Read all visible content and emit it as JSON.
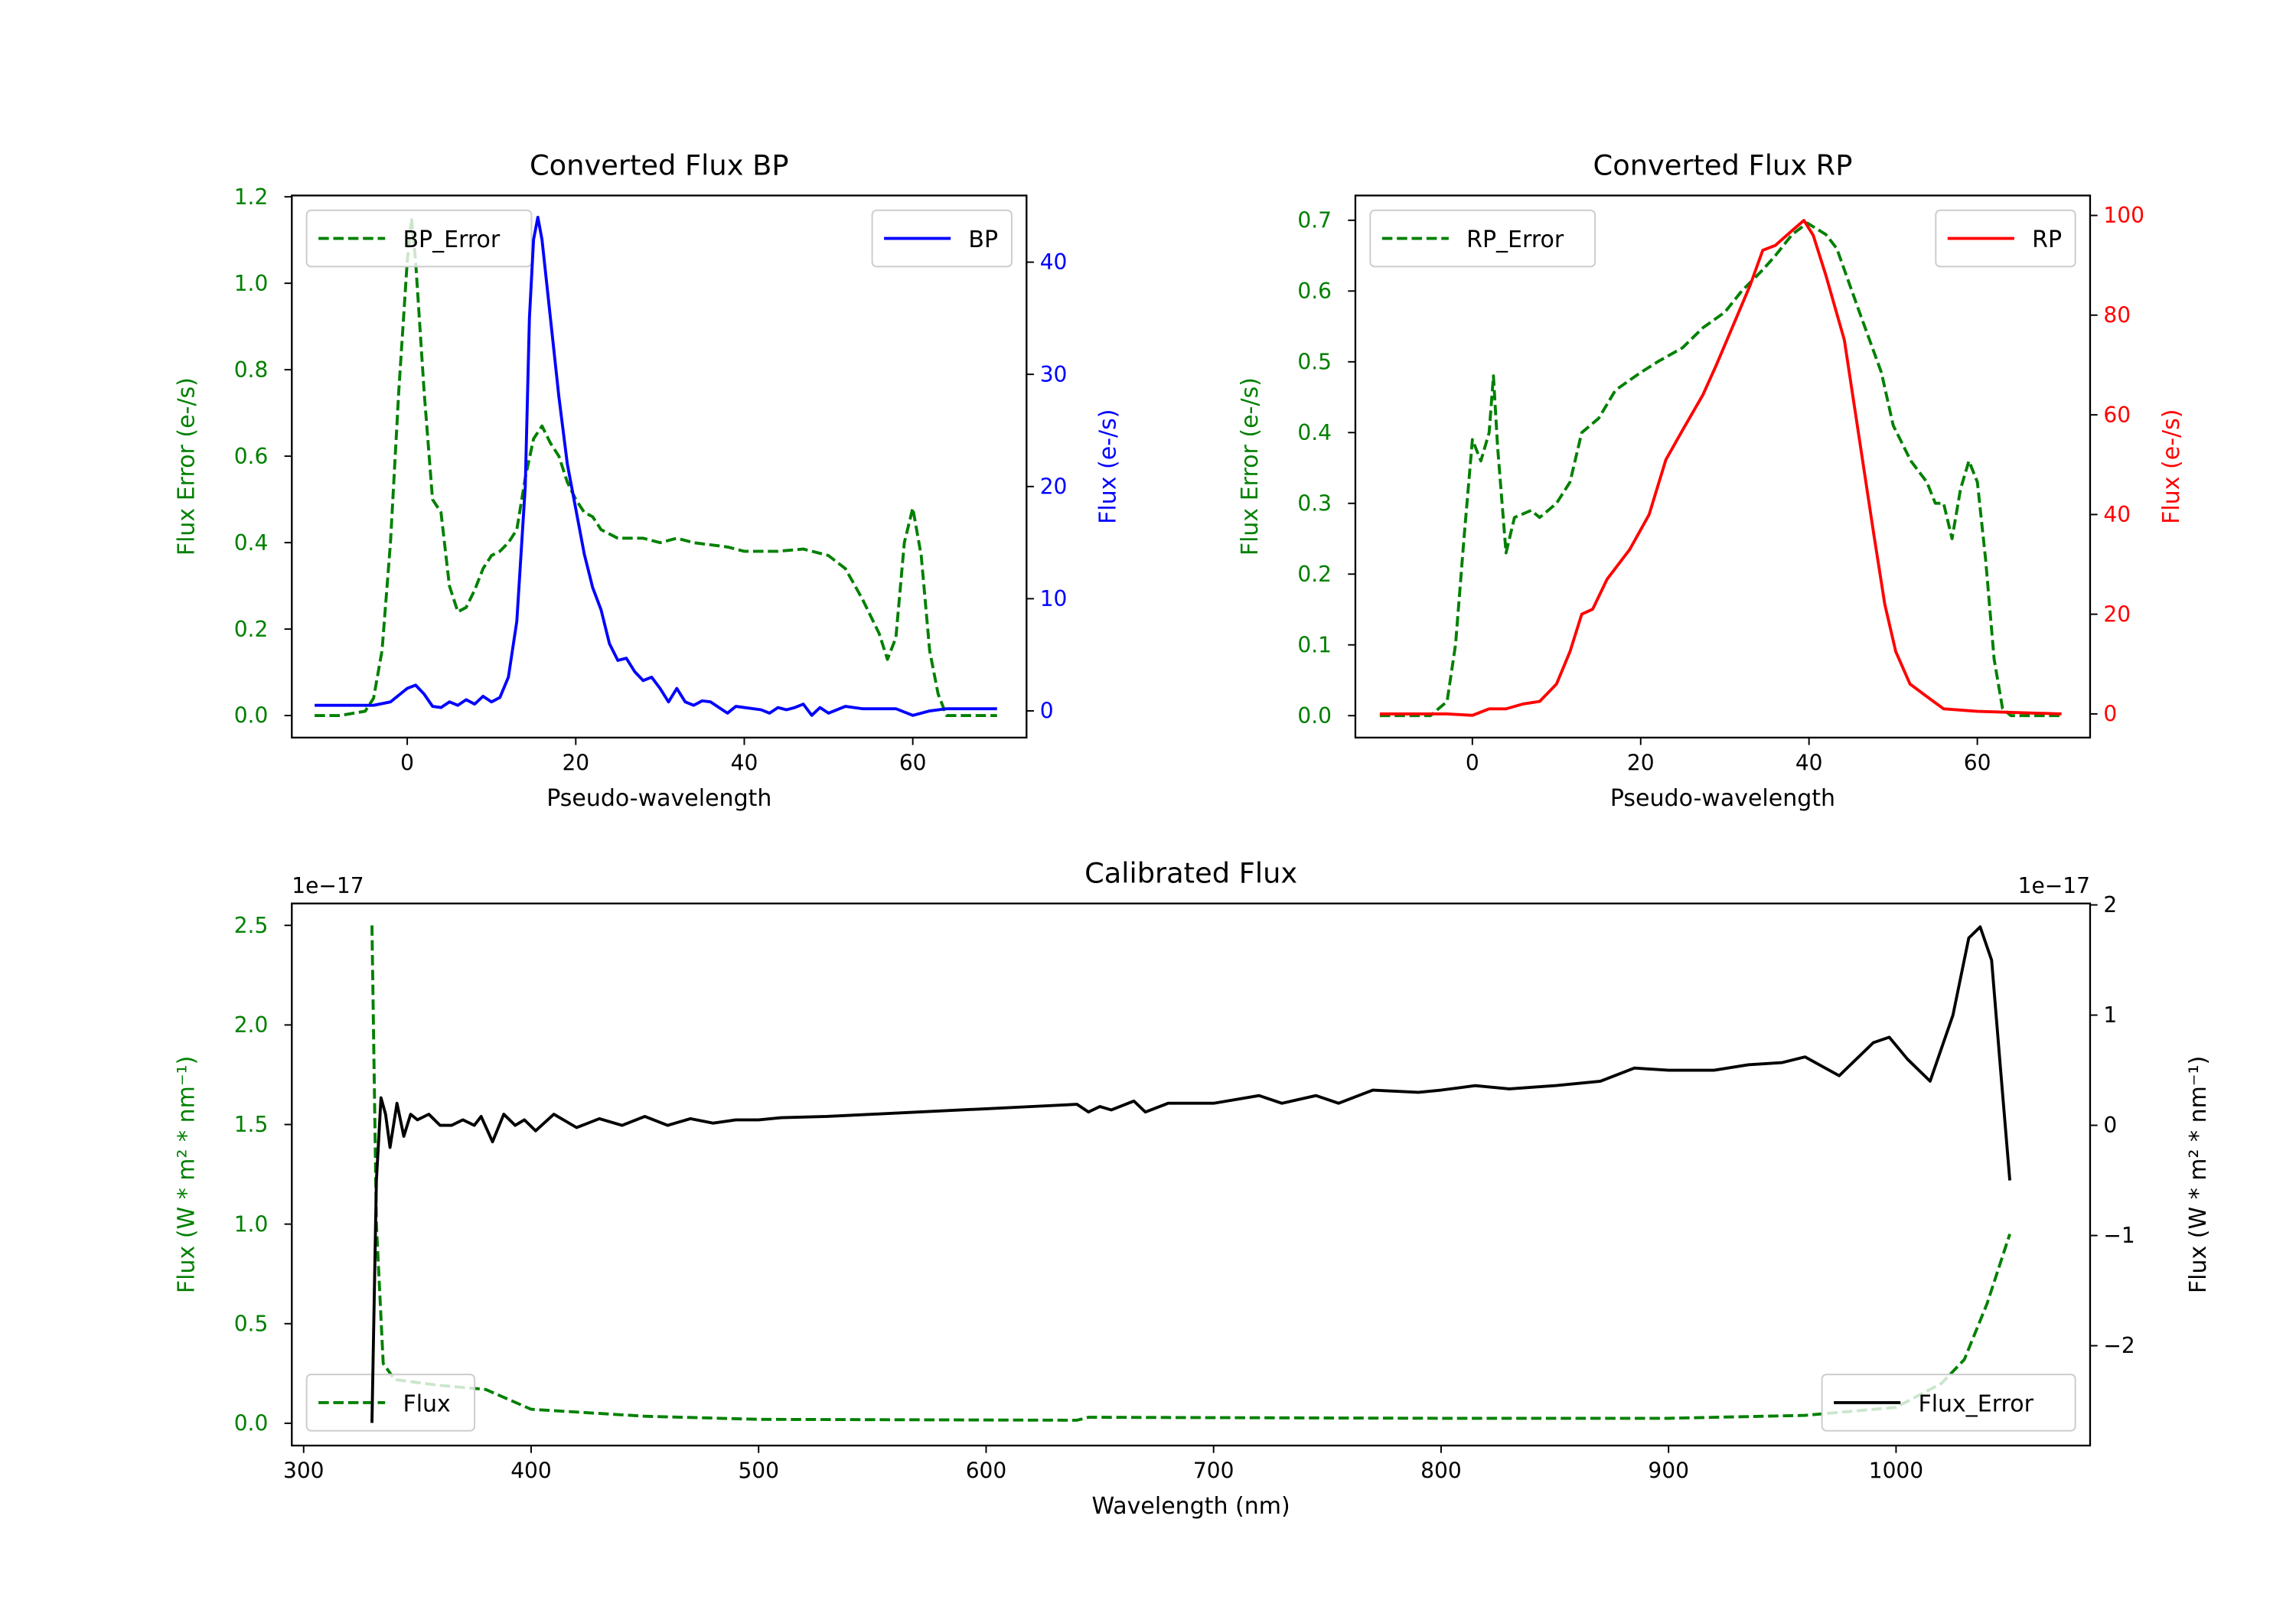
{
  "colors": {
    "green": "#008000",
    "blue": "#0000ff",
    "red": "#ff0000",
    "black": "#000000"
  },
  "chart_data": [
    {
      "type": "line",
      "title": "Converted Flux BP",
      "xlabel": "Pseudo-wavelength",
      "ylabel_left": "Flux Error (e-/s)",
      "ylabel_right": "Flux (e-/s)",
      "left_color": "#008000",
      "right_color": "#0000ff",
      "xlim": [
        -13.7,
        73.5
      ],
      "ylim_left": [
        -0.051,
        1.203
      ],
      "ylim_right": [
        -2.38,
        45.94
      ],
      "xticks": [
        0,
        20,
        40,
        60
      ],
      "xtick_labels": [
        "0",
        "20",
        "40",
        "60"
      ],
      "yticks_left": [
        0.0,
        0.2,
        0.4,
        0.6,
        0.8,
        1.0,
        1.2
      ],
      "ytick_labels_left": [
        "0.0",
        "0.2",
        "0.4",
        "0.6",
        "0.8",
        "1.0",
        "1.2"
      ],
      "yticks_right": [
        0,
        10,
        20,
        30,
        40
      ],
      "ytick_labels_right": [
        "0",
        "10",
        "20",
        "30",
        "40"
      ],
      "offset_left": "",
      "offset_right": "",
      "legend_left": {
        "placement": "upper-left",
        "label": "BP_Error"
      },
      "legend_right": {
        "placement": "upper-right",
        "label": "BP"
      },
      "series": [
        {
          "name": "BP_Error",
          "axis": "left",
          "color": "#008000",
          "style": "dashed",
          "x": [
            -11,
            -8,
            -5,
            -4,
            -3,
            -2,
            -1,
            0,
            0.5,
            1,
            2,
            3,
            4,
            5,
            6,
            7,
            8,
            9,
            10,
            11,
            12,
            13,
            14,
            15,
            16,
            17,
            18,
            19,
            20,
            21,
            22,
            23,
            24,
            25,
            28,
            30,
            32,
            34,
            38,
            40,
            42,
            44,
            47,
            50,
            52,
            54,
            56,
            57,
            58,
            59,
            60,
            61,
            62,
            63,
            64,
            66,
            70
          ],
          "y": [
            0,
            0,
            0.01,
            0.04,
            0.15,
            0.4,
            0.75,
            1.05,
            1.15,
            1.05,
            0.75,
            0.5,
            0.47,
            0.3,
            0.24,
            0.25,
            0.29,
            0.34,
            0.37,
            0.38,
            0.4,
            0.43,
            0.55,
            0.64,
            0.67,
            0.63,
            0.6,
            0.54,
            0.5,
            0.47,
            0.46,
            0.43,
            0.42,
            0.41,
            0.41,
            0.4,
            0.41,
            0.4,
            0.39,
            0.38,
            0.38,
            0.38,
            0.385,
            0.37,
            0.34,
            0.27,
            0.19,
            0.13,
            0.18,
            0.4,
            0.48,
            0.37,
            0.15,
            0.05,
            0,
            0,
            0
          ]
        },
        {
          "name": "BP",
          "axis": "right",
          "color": "#0000ff",
          "style": "solid",
          "x": [
            -11,
            -4,
            -2,
            0,
            1,
            2,
            3,
            4,
            5,
            6,
            7,
            8,
            9,
            10,
            11,
            12,
            13,
            14,
            14.5,
            15,
            15.5,
            16,
            17,
            18,
            19,
            20,
            21,
            22,
            23,
            24,
            25,
            26,
            27,
            28,
            29,
            30,
            31,
            32,
            33,
            34,
            35,
            36,
            37,
            38,
            39,
            40,
            42,
            43,
            44,
            45,
            46,
            47,
            48,
            49,
            50,
            52,
            54,
            56,
            58,
            60,
            62,
            64,
            70
          ],
          "y": [
            0.5,
            0.5,
            0.8,
            2,
            2.3,
            1.5,
            0.4,
            0.3,
            0.8,
            0.5,
            1,
            0.6,
            1.3,
            0.8,
            1.2,
            3,
            8,
            20,
            35,
            42,
            44,
            42,
            35,
            28,
            22,
            18,
            14,
            11,
            9,
            6,
            4.5,
            4.7,
            3.5,
            2.7,
            3,
            2,
            0.8,
            2,
            0.8,
            0.5,
            0.9,
            0.8,
            0.3,
            -0.2,
            0.4,
            0.3,
            0.1,
            -0.2,
            0.3,
            0.1,
            0.3,
            0.6,
            -0.4,
            0.3,
            -0.2,
            0.4,
            0.2,
            0.2,
            0.2,
            -0.4,
            0,
            0.2,
            0.2
          ]
        }
      ]
    },
    {
      "type": "line",
      "title": "Converted Flux RP",
      "xlabel": "Pseudo-wavelength",
      "ylabel_left": "Flux Error (e-/s)",
      "ylabel_right": "Flux (e-/s)",
      "left_color": "#008000",
      "right_color": "#ff0000",
      "xlim": [
        -13.9,
        73.4
      ],
      "ylim_left": [
        -0.031,
        0.735
      ],
      "ylim_right": [
        -4.75,
        104
      ],
      "xticks": [
        0,
        20,
        40,
        60
      ],
      "xtick_labels": [
        "0",
        "20",
        "40",
        "60"
      ],
      "yticks_left": [
        0.0,
        0.1,
        0.2,
        0.3,
        0.4,
        0.5,
        0.6,
        0.7
      ],
      "ytick_labels_left": [
        "0.0",
        "0.1",
        "0.2",
        "0.3",
        "0.4",
        "0.5",
        "0.6",
        "0.7"
      ],
      "yticks_right": [
        0,
        20,
        40,
        60,
        80,
        100
      ],
      "ytick_labels_right": [
        "0",
        "20",
        "40",
        "60",
        "80",
        "100"
      ],
      "offset_left": "",
      "offset_right": "",
      "legend_left": {
        "placement": "upper-left",
        "label": "RP_Error"
      },
      "legend_right": {
        "placement": "upper-right",
        "label": "RP"
      },
      "series": [
        {
          "name": "RP_Error",
          "axis": "left",
          "color": "#008000",
          "style": "dashed",
          "x": [
            -11,
            -5,
            -3,
            -2,
            -1,
            0,
            1,
            2,
            2.5,
            3,
            4,
            5,
            7,
            8,
            10,
            11.6,
            13,
            15,
            17,
            20,
            22,
            25,
            27.4,
            30,
            32,
            34.5,
            36,
            38,
            39.8,
            42,
            43.3,
            46,
            48.6,
            50,
            52.1,
            54,
            55,
            56,
            57,
            58,
            59,
            60,
            61,
            62,
            63,
            64,
            70
          ],
          "y": [
            0,
            0,
            0.02,
            0.1,
            0.25,
            0.39,
            0.36,
            0.4,
            0.48,
            0.38,
            0.23,
            0.28,
            0.29,
            0.28,
            0.3,
            0.33,
            0.4,
            0.42,
            0.46,
            0.485,
            0.5,
            0.52,
            0.548,
            0.57,
            0.6,
            0.63,
            0.65,
            0.68,
            0.696,
            0.68,
            0.66,
            0.57,
            0.485,
            0.41,
            0.36,
            0.33,
            0.3,
            0.3,
            0.25,
            0.32,
            0.36,
            0.33,
            0.22,
            0.08,
            0.01,
            0,
            0
          ]
        },
        {
          "name": "RP",
          "axis": "right",
          "color": "#ff0000",
          "style": "solid",
          "x": [
            -11,
            -3,
            0,
            2,
            4,
            6,
            8,
            10,
            11.6,
            13,
            14.3,
            16,
            18.7,
            21,
            23,
            25,
            27.4,
            29,
            31,
            33,
            34.5,
            36,
            38,
            39.4,
            40.5,
            42,
            44.2,
            46,
            47.7,
            49,
            50.3,
            52,
            53.9,
            56,
            60,
            70
          ],
          "y": [
            0,
            0,
            -0.3,
            1,
            1,
            2,
            2.5,
            6,
            12.5,
            20,
            21,
            27,
            33,
            40,
            51,
            57,
            64,
            70,
            78,
            86,
            93,
            94,
            97,
            99,
            96,
            88,
            75,
            55,
            36,
            22,
            12.5,
            6,
            3.6,
            1,
            0.5,
            0
          ]
        }
      ]
    },
    {
      "type": "line",
      "title": "Calibrated Flux",
      "xlabel": "Wavelength (nm)",
      "ylabel_left": "Flux (W * m² * nm⁻¹)",
      "ylabel_right": "Flux (W * m² * nm⁻¹)",
      "left_color": "#008000",
      "right_color": "#000000",
      "xlim": [
        294.8,
        1085.3
      ],
      "ylim_left": [
        -0.112,
        2.61
      ],
      "ylim_right": [
        -2.906,
        2.013
      ],
      "xticks": [
        300,
        400,
        500,
        600,
        700,
        800,
        900,
        1000
      ],
      "xtick_labels": [
        "300",
        "400",
        "500",
        "600",
        "700",
        "800",
        "900",
        "1000"
      ],
      "yticks_left": [
        0.0,
        0.5,
        1.0,
        1.5,
        2.0,
        2.5
      ],
      "ytick_labels_left": [
        "0.0",
        "0.5",
        "1.0",
        "1.5",
        "2.0",
        "2.5"
      ],
      "yticks_right": [
        -2,
        -1,
        0,
        1,
        2
      ],
      "ytick_labels_right": [
        "−2",
        "−1",
        "0",
        "1",
        "2"
      ],
      "offset_left": "1e−17",
      "offset_right": "1e−17",
      "legend_left": {
        "placement": "lower-left",
        "label": "Flux"
      },
      "legend_right": {
        "placement": "lower-right",
        "label": "Flux_Error"
      },
      "series": [
        {
          "name": "Flux_Error",
          "axis": "left",
          "color": "#008000",
          "style": "dashed",
          "x": [
            330,
            332,
            335,
            340,
            360,
            380,
            390,
            400,
            450,
            500,
            640,
            645,
            800,
            900,
            960,
            1000,
            1020,
            1030,
            1040,
            1050
          ],
          "y": [
            2.5,
            1.0,
            0.3,
            0.22,
            0.19,
            0.17,
            0.12,
            0.07,
            0.035,
            0.02,
            0.015,
            0.03,
            0.025,
            0.025,
            0.04,
            0.08,
            0.2,
            0.32,
            0.6,
            0.95
          ]
        },
        {
          "name": "Flux",
          "axis": "right",
          "color": "#000000",
          "style": "solid",
          "x": [
            330,
            332,
            334,
            336,
            338,
            341,
            344,
            347,
            350,
            355,
            360,
            365,
            370,
            375,
            378,
            383,
            388,
            393,
            397,
            402,
            410,
            420,
            430,
            440,
            450,
            460,
            470,
            480,
            490,
            500,
            510,
            530,
            550,
            570,
            600,
            620,
            640,
            645,
            650,
            655,
            665,
            670,
            680,
            700,
            720,
            730,
            745,
            755,
            770,
            790,
            800,
            815,
            830,
            850,
            870,
            885,
            900,
            920,
            935,
            950,
            960,
            975,
            990,
            997,
            1005,
            1015,
            1025,
            1032,
            1037,
            1042,
            1046,
            1050
          ],
          "y": [
            -2.7,
            -0.5,
            0.25,
            0.1,
            -0.2,
            0.2,
            -0.1,
            0.1,
            0.05,
            0.1,
            0,
            0,
            0.05,
            0,
            0.08,
            -0.15,
            0.1,
            0,
            0.05,
            -0.05,
            0.1,
            -0.02,
            0.06,
            0,
            0.08,
            0,
            0.06,
            0.02,
            0.05,
            0.05,
            0.07,
            0.08,
            0.1,
            0.12,
            0.15,
            0.17,
            0.19,
            0.12,
            0.17,
            0.14,
            0.22,
            0.12,
            0.2,
            0.2,
            0.27,
            0.2,
            0.27,
            0.2,
            0.32,
            0.3,
            0.32,
            0.36,
            0.33,
            0.36,
            0.4,
            0.52,
            0.5,
            0.5,
            0.55,
            0.57,
            0.62,
            0.45,
            0.75,
            0.8,
            0.6,
            0.4,
            1.0,
            1.7,
            1.8,
            1.5,
            0.5,
            -0.5
          ]
        }
      ]
    }
  ]
}
